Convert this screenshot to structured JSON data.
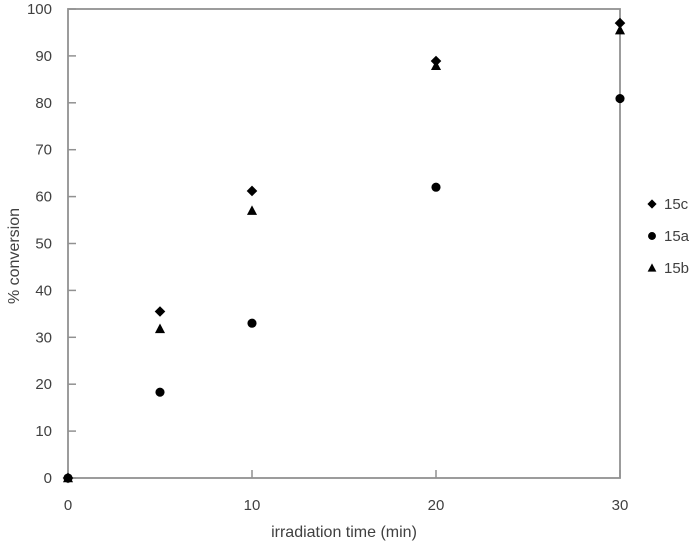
{
  "style": {
    "background": "#ffffff",
    "axis_color": "#919191",
    "text_color": "#404040",
    "marker_color": "#000000"
  },
  "chart_data": {
    "type": "scatter",
    "title": "",
    "xlabel": "irradiation time (min)",
    "ylabel": "% conversion",
    "xlim": [
      0,
      30
    ],
    "ylim": [
      0,
      100
    ],
    "x_ticks": [
      0,
      10,
      20,
      30
    ],
    "y_ticks": [
      0,
      10,
      20,
      30,
      40,
      50,
      60,
      70,
      80,
      90,
      100
    ],
    "grid": false,
    "legend_position": "right",
    "series": [
      {
        "name": "15c",
        "marker": "diamond",
        "x": [
          0,
          5,
          10,
          20,
          30
        ],
        "y": [
          0,
          35.5,
          61.2,
          88.9,
          97.0
        ]
      },
      {
        "name": "15a",
        "marker": "circle",
        "x": [
          0,
          5,
          10,
          20,
          30
        ],
        "y": [
          0,
          18.3,
          33.0,
          62.0,
          80.9
        ]
      },
      {
        "name": "15b",
        "marker": "triangle",
        "x": [
          0,
          5,
          10,
          20,
          30
        ],
        "y": [
          0,
          31.8,
          57.0,
          87.9,
          95.5
        ]
      }
    ]
  }
}
